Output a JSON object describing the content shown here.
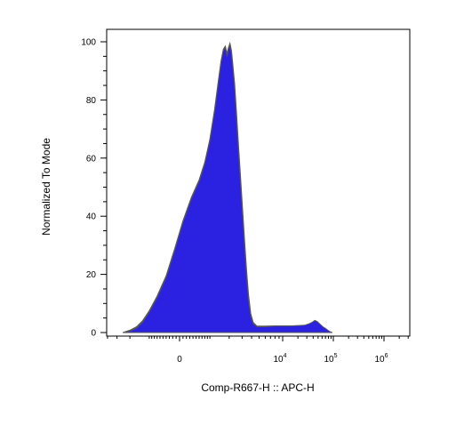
{
  "chart_data": {
    "type": "area",
    "xlabel": "Comp-R667-H :: APC-H",
    "ylabel": "Normalized To Mode",
    "x_scale": "biexponential",
    "x_ticks": [
      {
        "value": 0,
        "base": "0",
        "exp": ""
      },
      {
        "value": 10000,
        "base": "10",
        "exp": "4"
      },
      {
        "value": 100000,
        "base": "10",
        "exp": "5"
      },
      {
        "value": 1000000,
        "base": "10",
        "exp": "6"
      }
    ],
    "y_ticks": [
      0,
      20,
      40,
      60,
      80,
      100
    ],
    "ylim": [
      0,
      102
    ],
    "grid": false,
    "fill_color": "#2a22e0",
    "outline_color": "#555555",
    "series": [
      {
        "fill": "#2a22e0",
        "points": [
          [
            -2500,
            0
          ],
          [
            -2000,
            0.5
          ],
          [
            -1600,
            1.5
          ],
          [
            -1300,
            3.5
          ],
          [
            -1000,
            7
          ],
          [
            -700,
            12
          ],
          [
            -400,
            19
          ],
          [
            -150,
            28
          ],
          [
            100,
            38
          ],
          [
            350,
            46
          ],
          [
            600,
            52
          ],
          [
            800,
            58
          ],
          [
            1000,
            66
          ],
          [
            1200,
            76
          ],
          [
            1380,
            86
          ],
          [
            1520,
            93
          ],
          [
            1650,
            97
          ],
          [
            1760,
            98
          ],
          [
            1860,
            95
          ],
          [
            1950,
            97.5
          ],
          [
            2050,
            99
          ],
          [
            2150,
            96
          ],
          [
            2250,
            91
          ],
          [
            2380,
            84
          ],
          [
            2520,
            74
          ],
          [
            2680,
            63
          ],
          [
            2850,
            52
          ],
          [
            3050,
            40
          ],
          [
            3250,
            29
          ],
          [
            3450,
            19
          ],
          [
            3650,
            11
          ],
          [
            3900,
            5.5
          ],
          [
            4200,
            3
          ],
          [
            4700,
            2
          ],
          [
            6000,
            2
          ],
          [
            8000,
            2.2
          ],
          [
            10000,
            2.2
          ],
          [
            14000,
            2.2
          ],
          [
            20000,
            2.4
          ],
          [
            27000,
            2.5
          ],
          [
            33000,
            3
          ],
          [
            38000,
            3.5
          ],
          [
            43000,
            4.2
          ],
          [
            48000,
            3.8
          ],
          [
            55000,
            2.8
          ],
          [
            62000,
            2
          ],
          [
            70000,
            1.4
          ],
          [
            78000,
            0.8
          ],
          [
            86000,
            0.3
          ],
          [
            95000,
            0
          ]
        ]
      },
      {
        "fill": "#555555",
        "points": [
          [
            -2500,
            0
          ],
          [
            -2000,
            0.8
          ],
          [
            -1600,
            2
          ],
          [
            -1300,
            4
          ],
          [
            -1000,
            7.5
          ],
          [
            -700,
            12.5
          ],
          [
            -400,
            19.5
          ],
          [
            -150,
            28.5
          ],
          [
            100,
            38.5
          ],
          [
            350,
            46.5
          ],
          [
            600,
            52.5
          ],
          [
            800,
            58.5
          ],
          [
            1000,
            66.5
          ],
          [
            1200,
            76.5
          ],
          [
            1380,
            86.5
          ],
          [
            1520,
            93.5
          ],
          [
            1650,
            97.5
          ],
          [
            1760,
            98.5
          ],
          [
            1860,
            96
          ],
          [
            1950,
            98
          ],
          [
            2050,
            99.5
          ],
          [
            2150,
            97
          ],
          [
            2250,
            92
          ],
          [
            2380,
            85.5
          ],
          [
            2520,
            76
          ],
          [
            2680,
            65
          ],
          [
            2850,
            54
          ],
          [
            3050,
            42
          ],
          [
            3250,
            31
          ],
          [
            3450,
            21
          ],
          [
            3650,
            13
          ],
          [
            3900,
            6.5
          ],
          [
            4200,
            3.5
          ],
          [
            4700,
            2.2
          ],
          [
            6000,
            2.2
          ],
          [
            8000,
            2.3
          ],
          [
            10000,
            2.3
          ],
          [
            14000,
            2.3
          ],
          [
            20000,
            2.4
          ],
          [
            27000,
            2.4
          ],
          [
            33000,
            2.5
          ],
          [
            38000,
            2.4
          ],
          [
            43000,
            2.2
          ],
          [
            48000,
            2.0
          ],
          [
            55000,
            1.7
          ],
          [
            62000,
            1.3
          ],
          [
            70000,
            0.9
          ],
          [
            78000,
            0.5
          ],
          [
            86000,
            0.2
          ],
          [
            95000,
            0
          ]
        ]
      }
    ]
  }
}
